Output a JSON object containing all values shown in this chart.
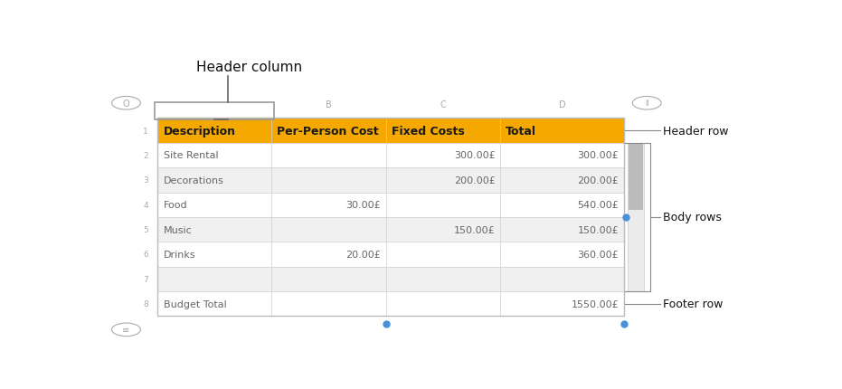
{
  "title_annotation": "Header column",
  "annotations": [
    {
      "text": "Header row"
    },
    {
      "text": "Body rows"
    },
    {
      "text": "Footer row"
    }
  ],
  "header_row": [
    "Description",
    "Per-Person Cost",
    "Fixed Costs",
    "Total"
  ],
  "body_rows": [
    [
      "Site Rental",
      "",
      "300.00£",
      "300.00£"
    ],
    [
      "Decorations",
      "",
      "200.00£",
      "200.00£"
    ],
    [
      "Food",
      "30.00£",
      "",
      "540.00£"
    ],
    [
      "Music",
      "",
      "150.00£",
      "150.00£"
    ],
    [
      "Drinks",
      "20.00£",
      "",
      "360.00£"
    ],
    [
      "",
      "",
      "",
      ""
    ]
  ],
  "footer_row": [
    "Budget Total",
    "",
    "",
    "1550.00£"
  ],
  "header_bg": "#F5A800",
  "body_row_bg_odd": "#FFFFFF",
  "body_row_bg_even": "#F0F0F0",
  "footer_bg": "#FFFFFF",
  "grid_color": "#CCCCCC",
  "row_number_color": "#AAAAAA",
  "col_letter_color": "#AAAAAA",
  "header_text_color": "#1A1A1A",
  "body_text_color": "#666666",
  "blue_dot_color": "#4A90D9",
  "scrollbar_bg": "#E0E0E0",
  "scrollbar_thumb": "#AAAAAA"
}
